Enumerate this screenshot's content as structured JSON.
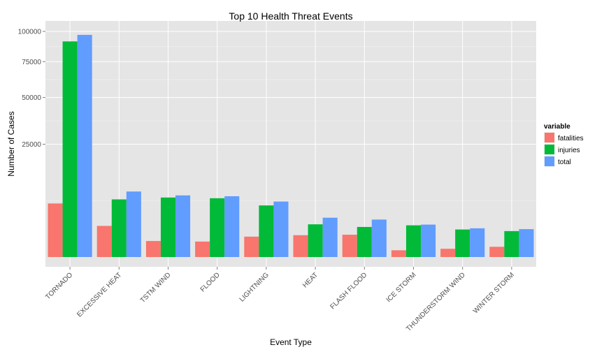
{
  "chart_data": {
    "type": "bar",
    "title": "Top 10 Health Threat Events",
    "xlabel": "Event Type",
    "ylabel": "Number of Cases",
    "y_scale": "sqrt",
    "yticks": [
      25000,
      50000,
      75000,
      100000
    ],
    "ylim": [
      0,
      100000
    ],
    "grid": true,
    "legend_position": "right",
    "legend_title": "variable",
    "categories": [
      "TORNADO",
      "EXCESSIVE HEAT",
      "TSTM WIND",
      "FLOOD",
      "LIGHTNING",
      "HEAT",
      "FLASH FLOOD",
      "ICE STORM",
      "THUNDERSTORM WIND",
      "WINTER STORM"
    ],
    "series": [
      {
        "name": "fatalities",
        "color": "#F8766D",
        "values": [
          5633,
          1903,
          504,
          470,
          816,
          937,
          978,
          89,
          133,
          206
        ]
      },
      {
        "name": "injuries",
        "color": "#00BA38",
        "values": [
          91346,
          6525,
          6957,
          6789,
          5230,
          2100,
          1777,
          1975,
          1488,
          1321
        ]
      },
      {
        "name": "total",
        "color": "#619CFF",
        "values": [
          96979,
          8428,
          7461,
          7259,
          6046,
          3037,
          2755,
          2064,
          1621,
          1527
        ]
      }
    ]
  }
}
